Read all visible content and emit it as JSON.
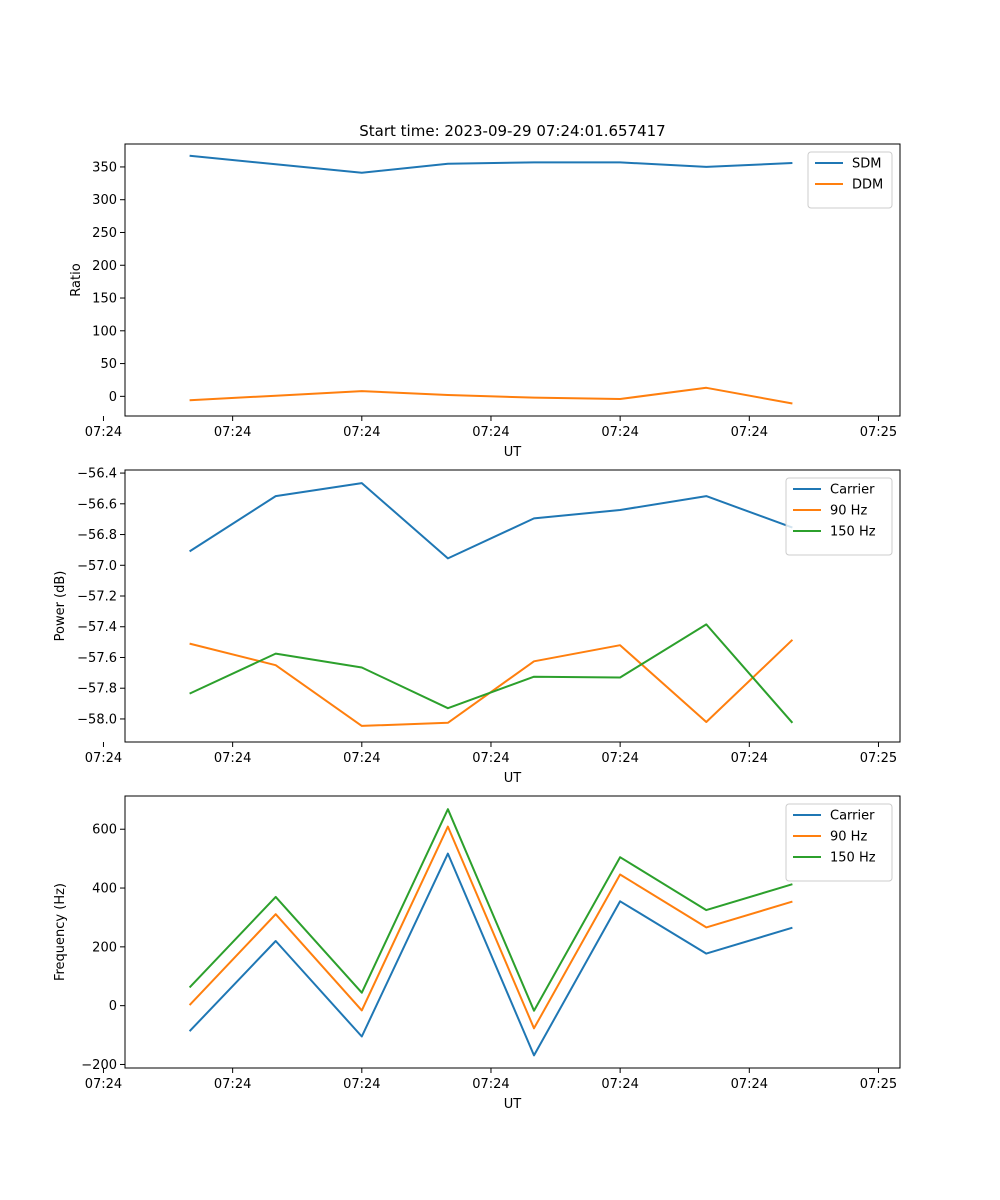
{
  "chart_data": [
    {
      "type": "line",
      "title": "Start time: 2023-09-29 07:24:01.657417",
      "xlabel": "UT",
      "ylabel": "Ratio",
      "x": [
        1,
        2,
        3,
        4,
        5,
        6,
        7,
        8
      ],
      "xlim": [
        0.25,
        9.25
      ],
      "x_ticks": [
        0.0,
        1.5,
        3.0,
        4.5,
        6.0,
        7.5,
        9.0
      ],
      "x_tick_labels": [
        "07:24",
        "07:24",
        "07:24",
        "07:24",
        "07:24",
        "07:24",
        "07:25"
      ],
      "ylim": [
        -30,
        385
      ],
      "y_ticks": [
        0,
        50,
        100,
        150,
        200,
        250,
        300,
        350
      ],
      "y_tick_labels": [
        "0",
        "50",
        "100",
        "150",
        "200",
        "250",
        "300",
        "350"
      ],
      "legend": "upper right",
      "series": [
        {
          "name": "SDM",
          "color": "#1f77b4",
          "values": [
            367,
            354,
            341,
            355,
            357,
            357,
            350,
            356
          ]
        },
        {
          "name": "DDM",
          "color": "#ff7f0e",
          "values": [
            -6,
            1,
            8,
            2,
            -2,
            -4,
            13,
            -11
          ]
        }
      ]
    },
    {
      "type": "line",
      "title": "",
      "xlabel": "UT",
      "ylabel": "Power (dB)",
      "x": [
        1,
        2,
        3,
        4,
        5,
        6,
        7,
        8
      ],
      "xlim": [
        0.25,
        9.25
      ],
      "x_ticks": [
        0.0,
        1.5,
        3.0,
        4.5,
        6.0,
        7.5,
        9.0
      ],
      "x_tick_labels": [
        "07:24",
        "07:24",
        "07:24",
        "07:24",
        "07:24",
        "07:24",
        "07:25"
      ],
      "ylim": [
        -58.15,
        -56.38
      ],
      "y_ticks": [
        -58.0,
        -57.8,
        -57.6,
        -57.4,
        -57.2,
        -57.0,
        -56.8,
        -56.6,
        -56.4
      ],
      "y_tick_labels": [
        "−58.0",
        "−57.8",
        "−57.6",
        "−57.4",
        "−57.2",
        "−57.0",
        "−56.8",
        "−56.6",
        "−56.4"
      ],
      "legend": "upper right",
      "series": [
        {
          "name": "Carrier",
          "color": "#1f77b4",
          "values": [
            -56.91,
            -56.55,
            -56.465,
            -56.955,
            -56.695,
            -56.64,
            -56.55,
            -56.755
          ]
        },
        {
          "name": "90 Hz",
          "color": "#ff7f0e",
          "values": [
            -57.51,
            -57.65,
            -58.045,
            -58.025,
            -57.625,
            -57.52,
            -58.02,
            -57.485
          ]
        },
        {
          "name": "150 Hz",
          "color": "#2ca02c",
          "values": [
            -57.835,
            -57.575,
            -57.665,
            -57.93,
            -57.725,
            -57.73,
            -57.385,
            -58.025
          ]
        }
      ]
    },
    {
      "type": "line",
      "title": "",
      "xlabel": "UT",
      "ylabel": "Frequency (Hz)",
      "x": [
        1,
        2,
        3,
        4,
        5,
        6,
        7,
        8
      ],
      "xlim": [
        0.25,
        9.25
      ],
      "x_ticks": [
        0.0,
        1.5,
        3.0,
        4.5,
        6.0,
        7.5,
        9.0
      ],
      "x_tick_labels": [
        "07:24",
        "07:24",
        "07:24",
        "07:24",
        "07:24",
        "07:24",
        "07:25"
      ],
      "ylim": [
        -212,
        713
      ],
      "y_ticks": [
        -200,
        0,
        200,
        400,
        600
      ],
      "y_tick_labels": [
        "−200",
        "0",
        "200",
        "400",
        "600"
      ],
      "legend": "upper right",
      "series": [
        {
          "name": "Carrier",
          "color": "#1f77b4",
          "values": [
            -87,
            220,
            -105,
            517,
            -169,
            355,
            177,
            265
          ]
        },
        {
          "name": "90 Hz",
          "color": "#ff7f0e",
          "values": [
            2,
            311,
            -16,
            609,
            -77,
            446,
            266,
            354
          ]
        },
        {
          "name": "150 Hz",
          "color": "#2ca02c",
          "values": [
            62,
            370,
            44,
            668,
            -17,
            505,
            325,
            413
          ]
        }
      ]
    }
  ]
}
